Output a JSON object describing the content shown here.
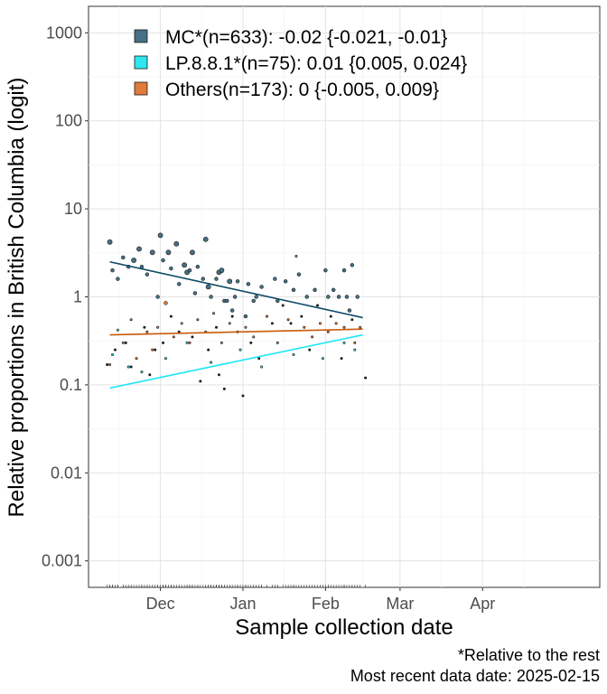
{
  "chart_data": {
    "type": "scatter",
    "title": "",
    "xlabel": "Sample collection date",
    "ylabel": "Relative proportions in British Columbia (logit)",
    "y_scale": "log",
    "ylim": [
      0.0005,
      2000
    ],
    "y_ticks": [
      {
        "value": 0.001,
        "label": "0.001"
      },
      {
        "value": 0.01,
        "label": "0.01"
      },
      {
        "value": 0.1,
        "label": "0.1"
      },
      {
        "value": 1,
        "label": "1"
      },
      {
        "value": 10,
        "label": "10"
      },
      {
        "value": 100,
        "label": "100"
      },
      {
        "value": 1000,
        "label": "1000"
      }
    ],
    "xlim": [
      "2024-11-04",
      "2025-05-15"
    ],
    "x_ticks": [
      {
        "value": "2024-12-01",
        "label": "Dec"
      },
      {
        "value": "2025-01-01",
        "label": "Jan"
      },
      {
        "value": "2025-02-01",
        "label": "Feb"
      },
      {
        "value": "2025-03-01",
        "label": "Mar"
      },
      {
        "value": "2025-04-01",
        "label": "Apr"
      }
    ],
    "grid": true,
    "legend_position": "top-left",
    "series": [
      {
        "name": "MC*(n=633): -0.02 {-0.021, -0.01}",
        "color": "#467083",
        "line_color": "#0e4a66",
        "fit": [
          {
            "x": "2024-11-12",
            "y": 2.5
          },
          {
            "x": "2025-02-15",
            "y": 0.58
          }
        ],
        "points": [
          {
            "x": "2024-11-12",
            "y": 4.2,
            "s": 3
          },
          {
            "x": "2024-11-13",
            "y": 2.0,
            "s": 2
          },
          {
            "x": "2024-11-15",
            "y": 1.6,
            "s": 2
          },
          {
            "x": "2024-11-17",
            "y": 2.8,
            "s": 2
          },
          {
            "x": "2024-11-19",
            "y": 2.2,
            "s": 2
          },
          {
            "x": "2024-11-21",
            "y": 2.6,
            "s": 3
          },
          {
            "x": "2024-11-23",
            "y": 3.5,
            "s": 3
          },
          {
            "x": "2024-11-24",
            "y": 2.2,
            "s": 2
          },
          {
            "x": "2024-11-26",
            "y": 1.8,
            "s": 2
          },
          {
            "x": "2024-11-28",
            "y": 3.2,
            "s": 3
          },
          {
            "x": "2024-11-30",
            "y": 1.0,
            "s": 2
          },
          {
            "x": "2024-12-01",
            "y": 5.0,
            "s": 3
          },
          {
            "x": "2024-12-02",
            "y": 2.6,
            "s": 2
          },
          {
            "x": "2024-12-04",
            "y": 3.2,
            "s": 3
          },
          {
            "x": "2024-12-05",
            "y": 2.1,
            "s": 2
          },
          {
            "x": "2024-12-07",
            "y": 4.0,
            "s": 3
          },
          {
            "x": "2024-12-08",
            "y": 1.4,
            "s": 2
          },
          {
            "x": "2024-12-10",
            "y": 2.3,
            "s": 3
          },
          {
            "x": "2024-12-11",
            "y": 1.9,
            "s": 3
          },
          {
            "x": "2024-12-12",
            "y": 2.0,
            "s": 2
          },
          {
            "x": "2024-12-13",
            "y": 3.2,
            "s": 3
          },
          {
            "x": "2024-12-14",
            "y": 1.1,
            "s": 2
          },
          {
            "x": "2024-12-15",
            "y": 2.2,
            "s": 2
          },
          {
            "x": "2024-12-17",
            "y": 1.6,
            "s": 2
          },
          {
            "x": "2024-12-18",
            "y": 4.5,
            "s": 3
          },
          {
            "x": "2024-12-19",
            "y": 1.3,
            "s": 3
          },
          {
            "x": "2024-12-20",
            "y": 1.0,
            "s": 2
          },
          {
            "x": "2024-12-22",
            "y": 1.6,
            "s": 2
          },
          {
            "x": "2024-12-23",
            "y": 1.9,
            "s": 3
          },
          {
            "x": "2024-12-24",
            "y": 2.0,
            "s": 3
          },
          {
            "x": "2024-12-25",
            "y": 0.9,
            "s": 2
          },
          {
            "x": "2024-12-26",
            "y": 0.9,
            "s": 2
          },
          {
            "x": "2024-12-27",
            "y": 1.5,
            "s": 3
          },
          {
            "x": "2024-12-28",
            "y": 0.7,
            "s": 2
          },
          {
            "x": "2024-12-29",
            "y": 1.0,
            "s": 2
          },
          {
            "x": "2024-12-30",
            "y": 1.5,
            "s": 2
          },
          {
            "x": "2025-01-02",
            "y": 0.6,
            "s": 2
          },
          {
            "x": "2025-01-03",
            "y": 1.4,
            "s": 2
          },
          {
            "x": "2025-01-05",
            "y": 0.9,
            "s": 2
          },
          {
            "x": "2025-01-06",
            "y": 1.0,
            "s": 2
          },
          {
            "x": "2025-01-08",
            "y": 1.3,
            "s": 2
          },
          {
            "x": "2025-01-13",
            "y": 1.6,
            "s": 2
          },
          {
            "x": "2025-01-14",
            "y": 0.9,
            "s": 2
          },
          {
            "x": "2025-01-17",
            "y": 1.5,
            "s": 2
          },
          {
            "x": "2025-01-20",
            "y": 1.2,
            "s": 2
          },
          {
            "x": "2025-01-22",
            "y": 1.8,
            "s": 2
          },
          {
            "x": "2025-01-25",
            "y": 1.0,
            "s": 2
          },
          {
            "x": "2025-01-28",
            "y": 1.2,
            "s": 2
          },
          {
            "x": "2025-02-01",
            "y": 2.0,
            "s": 2
          },
          {
            "x": "2025-02-02",
            "y": 1.0,
            "s": 2
          },
          {
            "x": "2025-02-04",
            "y": 1.2,
            "s": 2
          },
          {
            "x": "2025-02-06",
            "y": 1.0,
            "s": 2
          },
          {
            "x": "2025-02-08",
            "y": 2.0,
            "s": 2
          },
          {
            "x": "2025-02-09",
            "y": 1.0,
            "s": 2
          },
          {
            "x": "2025-02-10",
            "y": 0.7,
            "s": 2
          },
          {
            "x": "2025-02-11",
            "y": 2.3,
            "s": 2
          },
          {
            "x": "2025-02-13",
            "y": 1.0,
            "s": 2
          }
        ]
      },
      {
        "name": "LP.8.8.1*(n=75): 0.01 {0.005, 0.024}",
        "color": "#2de6f0",
        "line_color": "#1fe6f5",
        "fit": [
          {
            "x": "2024-11-12",
            "y": 0.092
          },
          {
            "x": "2025-02-15",
            "y": 0.37
          }
        ],
        "points": [
          {
            "x": "2024-11-13",
            "y": 0.22,
            "s": 1
          },
          {
            "x": "2024-11-15",
            "y": 0.42,
            "s": 1
          },
          {
            "x": "2024-11-19",
            "y": 0.16,
            "s": 1
          },
          {
            "x": "2024-11-24",
            "y": 0.14,
            "s": 1
          },
          {
            "x": "2024-12-03",
            "y": 0.2,
            "s": 1
          },
          {
            "x": "2024-12-11",
            "y": 0.3,
            "s": 1
          },
          {
            "x": "2024-12-20",
            "y": 0.18,
            "s": 1
          },
          {
            "x": "2024-12-31",
            "y": 0.25,
            "s": 1
          },
          {
            "x": "2025-01-08",
            "y": 0.16,
            "s": 1
          },
          {
            "x": "2025-01-20",
            "y": 0.22,
            "s": 1
          },
          {
            "x": "2025-01-31",
            "y": 0.2,
            "s": 1
          },
          {
            "x": "2025-02-08",
            "y": 0.3,
            "s": 1
          },
          {
            "x": "2025-02-12",
            "y": 0.25,
            "s": 1
          }
        ]
      },
      {
        "name": "Others(n=173): 0 {-0.005, 0.009}",
        "color": "#e07b39",
        "line_color": "#c95a0a",
        "fit": [
          {
            "x": "2024-11-12",
            "y": 0.37
          },
          {
            "x": "2025-02-15",
            "y": 0.43
          }
        ],
        "points": [
          {
            "x": "2024-11-12",
            "y": 0.17,
            "s": 1
          },
          {
            "x": "2024-11-17",
            "y": 0.3,
            "s": 1
          },
          {
            "x": "2024-11-20",
            "y": 0.55,
            "s": 1
          },
          {
            "x": "2024-11-22",
            "y": 0.2,
            "s": 1
          },
          {
            "x": "2024-11-26",
            "y": 0.4,
            "s": 1
          },
          {
            "x": "2024-11-28",
            "y": 0.25,
            "s": 1
          },
          {
            "x": "2024-11-30",
            "y": 0.45,
            "s": 1
          },
          {
            "x": "2024-12-03",
            "y": 0.85,
            "s": 2
          },
          {
            "x": "2024-12-06",
            "y": 0.35,
            "s": 1
          },
          {
            "x": "2024-12-09",
            "y": 0.5,
            "s": 1
          },
          {
            "x": "2024-12-12",
            "y": 0.3,
            "s": 1
          },
          {
            "x": "2024-12-15",
            "y": 0.55,
            "s": 1
          },
          {
            "x": "2024-12-18",
            "y": 0.4,
            "s": 1
          },
          {
            "x": "2024-12-21",
            "y": 0.65,
            "s": 1
          },
          {
            "x": "2024-12-24",
            "y": 0.3,
            "s": 1
          },
          {
            "x": "2024-12-27",
            "y": 0.5,
            "s": 1
          },
          {
            "x": "2024-12-30",
            "y": 0.4,
            "s": 1
          },
          {
            "x": "2025-01-02",
            "y": 0.45,
            "s": 1
          },
          {
            "x": "2025-01-05",
            "y": 0.35,
            "s": 1
          },
          {
            "x": "2025-01-10",
            "y": 0.6,
            "s": 1
          },
          {
            "x": "2025-01-14",
            "y": 0.3,
            "s": 1
          },
          {
            "x": "2025-01-18",
            "y": 0.55,
            "s": 1
          },
          {
            "x": "2025-01-21",
            "y": 2.9,
            "s": 1
          },
          {
            "x": "2025-01-24",
            "y": 0.45,
            "s": 1
          },
          {
            "x": "2025-01-27",
            "y": 0.35,
            "s": 1
          },
          {
            "x": "2025-01-30",
            "y": 0.5,
            "s": 1
          },
          {
            "x": "2025-02-02",
            "y": 0.4,
            "s": 1
          },
          {
            "x": "2025-02-05",
            "y": 0.5,
            "s": 1
          },
          {
            "x": "2025-02-08",
            "y": 0.45,
            "s": 1
          },
          {
            "x": "2025-02-12",
            "y": 0.3,
            "s": 1
          },
          {
            "x": "2025-02-14",
            "y": 0.45,
            "s": 1
          }
        ]
      },
      {
        "name": "",
        "color": "#222222",
        "points": [
          {
            "x": "2024-11-11",
            "y": 0.17,
            "s": 1
          },
          {
            "x": "2024-11-14",
            "y": 0.25,
            "s": 1
          },
          {
            "x": "2024-11-18",
            "y": 0.3,
            "s": 1
          },
          {
            "x": "2024-11-20",
            "y": 0.16,
            "s": 1
          },
          {
            "x": "2024-11-25",
            "y": 0.45,
            "s": 1
          },
          {
            "x": "2024-11-27",
            "y": 0.13,
            "s": 1
          },
          {
            "x": "2024-11-29",
            "y": 0.25,
            "s": 1
          },
          {
            "x": "2024-12-02",
            "y": 0.3,
            "s": 1
          },
          {
            "x": "2024-12-05",
            "y": 0.6,
            "s": 1
          },
          {
            "x": "2024-12-08",
            "y": 0.4,
            "s": 1
          },
          {
            "x": "2024-12-13",
            "y": 0.35,
            "s": 1
          },
          {
            "x": "2024-12-16",
            "y": 0.11,
            "s": 1
          },
          {
            "x": "2024-12-19",
            "y": 0.25,
            "s": 1
          },
          {
            "x": "2024-12-22",
            "y": 0.45,
            "s": 1
          },
          {
            "x": "2024-12-23",
            "y": 0.13,
            "s": 1
          },
          {
            "x": "2024-12-25",
            "y": 0.09,
            "s": 1
          },
          {
            "x": "2024-12-28",
            "y": 0.6,
            "s": 1
          },
          {
            "x": "2025-01-01",
            "y": 0.075,
            "s": 1
          },
          {
            "x": "2025-01-04",
            "y": 0.3,
            "s": 1
          },
          {
            "x": "2025-01-07",
            "y": 0.2,
            "s": 1
          },
          {
            "x": "2025-01-12",
            "y": 0.5,
            "s": 1
          },
          {
            "x": "2025-01-16",
            "y": 0.8,
            "s": 1
          },
          {
            "x": "2025-01-19",
            "y": 0.5,
            "s": 1
          },
          {
            "x": "2025-01-23",
            "y": 0.6,
            "s": 1
          },
          {
            "x": "2025-01-26",
            "y": 0.25,
            "s": 1
          },
          {
            "x": "2025-01-29",
            "y": 0.8,
            "s": 1
          },
          {
            "x": "2025-02-03",
            "y": 0.6,
            "s": 1
          },
          {
            "x": "2025-02-07",
            "y": 0.2,
            "s": 1
          },
          {
            "x": "2025-02-11",
            "y": 0.55,
            "s": 1
          },
          {
            "x": "2025-02-16",
            "y": 0.12,
            "s": 1
          }
        ]
      }
    ],
    "caption": [
      "*Relative to the rest",
      "Most recent data date: 2025-02-15"
    ]
  }
}
